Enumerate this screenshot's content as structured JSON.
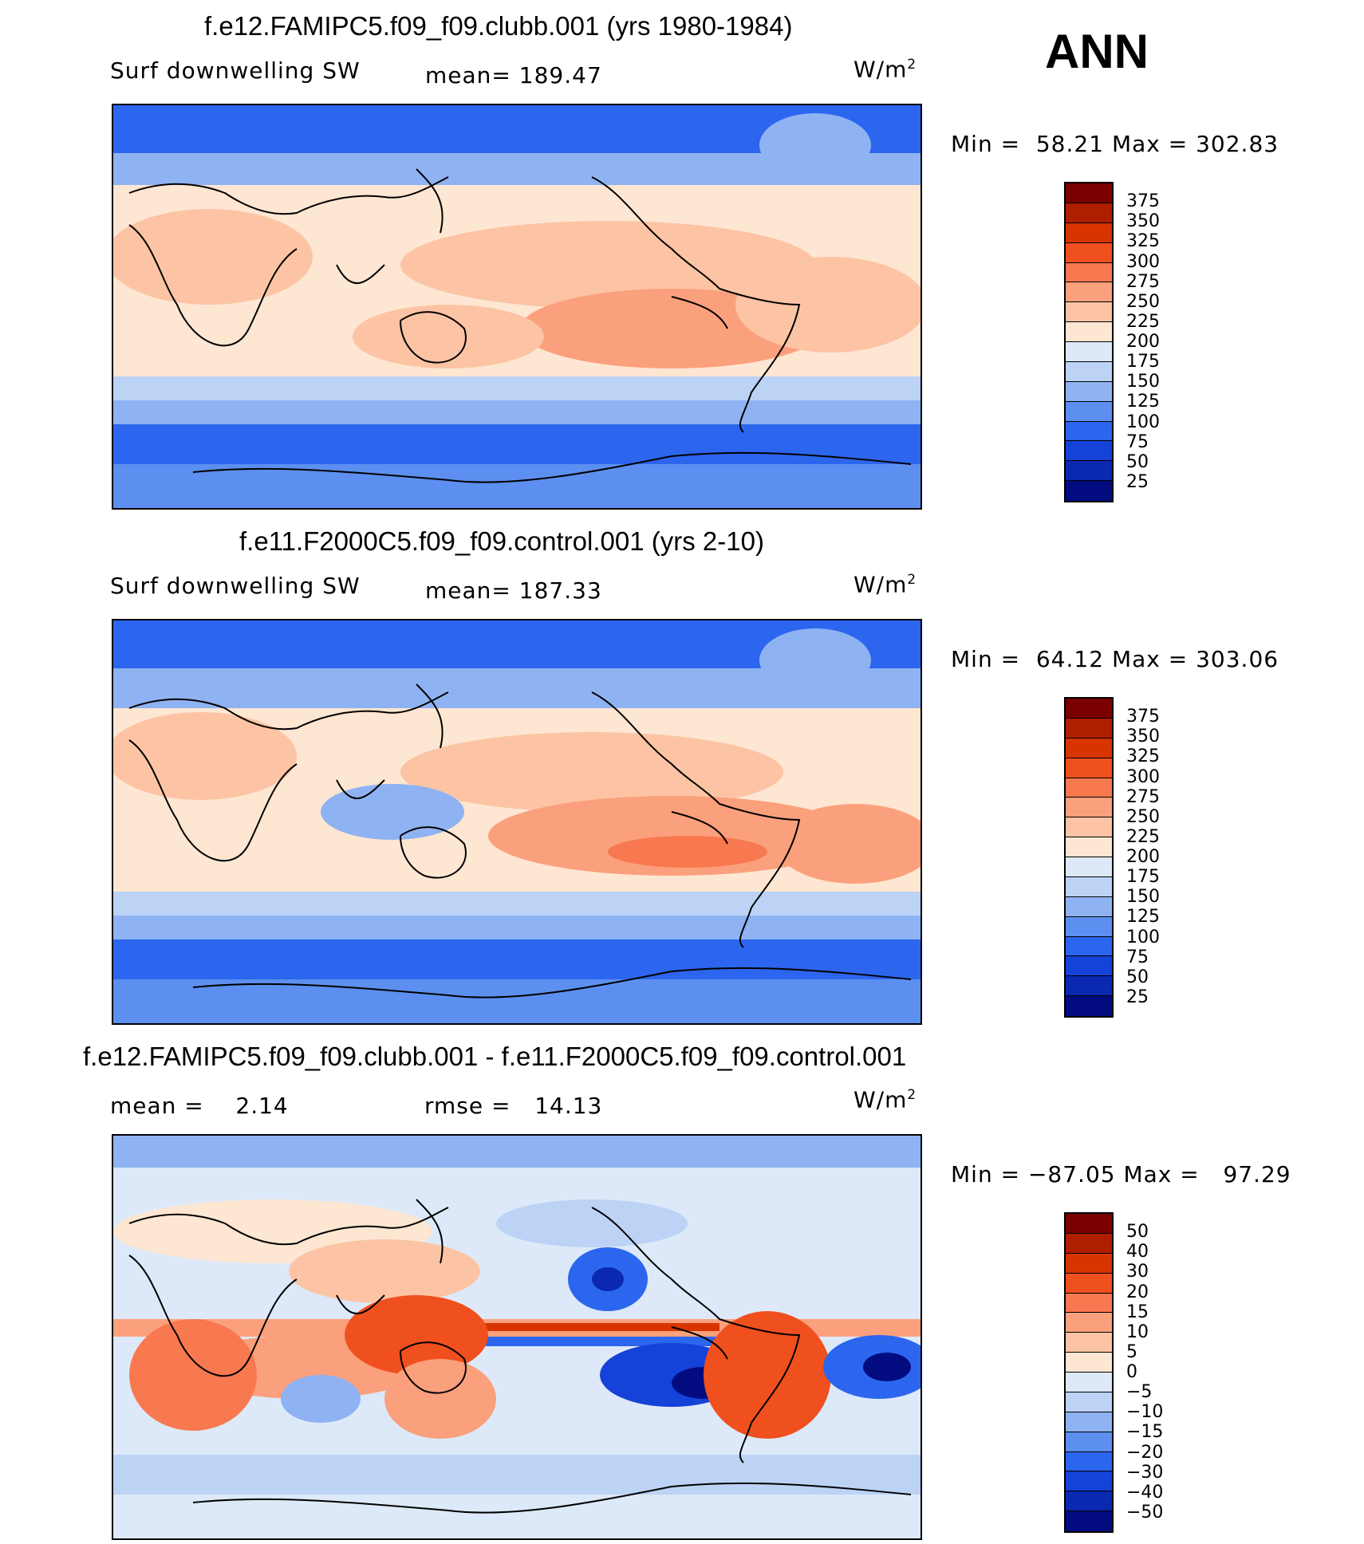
{
  "figure": {
    "season": "ANN",
    "units_base": "W/m",
    "units_exp": "2"
  },
  "panels": [
    {
      "title": "f.e12.FAMIPC5.f09_f09.clubb.001 (yrs 1980-1984)",
      "variable": "Surf downwelling SW",
      "stat1_label": "mean=",
      "stat1_value": "189.47",
      "min_label": "Min =",
      "min_value": "58.21",
      "max_label": "Max =",
      "max_value": "302.83",
      "colorbar_labels": [
        "375",
        "350",
        "325",
        "300",
        "275",
        "250",
        "225",
        "200",
        "175",
        "150",
        "125",
        "100",
        "75",
        "50",
        "25"
      ]
    },
    {
      "title": "f.e11.F2000C5.f09_f09.control.001 (yrs 2-10)",
      "variable": "Surf downwelling SW",
      "stat1_label": "mean=",
      "stat1_value": "187.33",
      "min_label": "Min =",
      "min_value": "64.12",
      "max_label": "Max =",
      "max_value": "303.06",
      "colorbar_labels": [
        "375",
        "350",
        "325",
        "300",
        "275",
        "250",
        "225",
        "200",
        "175",
        "150",
        "125",
        "100",
        "75",
        "50",
        "25"
      ]
    },
    {
      "title": "f.e12.FAMIPC5.f09_f09.clubb.001 - f.e11.F2000C5.f09_f09.control.001",
      "stat1_label": "mean =",
      "stat1_value": "2.14",
      "stat2_label": "rmse =",
      "stat2_value": "14.13",
      "min_label": "Min =",
      "min_value": "−87.05",
      "max_label": "Max =",
      "max_value": "97.29",
      "colorbar_labels": [
        "50",
        "40",
        "30",
        "20",
        "15",
        "10",
        "5",
        "0",
        "−5",
        "−10",
        "−15",
        "−20",
        "−30",
        "−40",
        "−50"
      ]
    }
  ],
  "colorbar_colors": [
    "#7a0000",
    "#b01e00",
    "#d83400",
    "#f0501e",
    "#f87850",
    "#fba07c",
    "#fcc4a4",
    "#fde6d2",
    "#dde9f8",
    "#bcd3f5",
    "#8fb3f2",
    "#5c8ff0",
    "#2c66ee",
    "#1542d8",
    "#0a28b0",
    "#020c80"
  ]
}
